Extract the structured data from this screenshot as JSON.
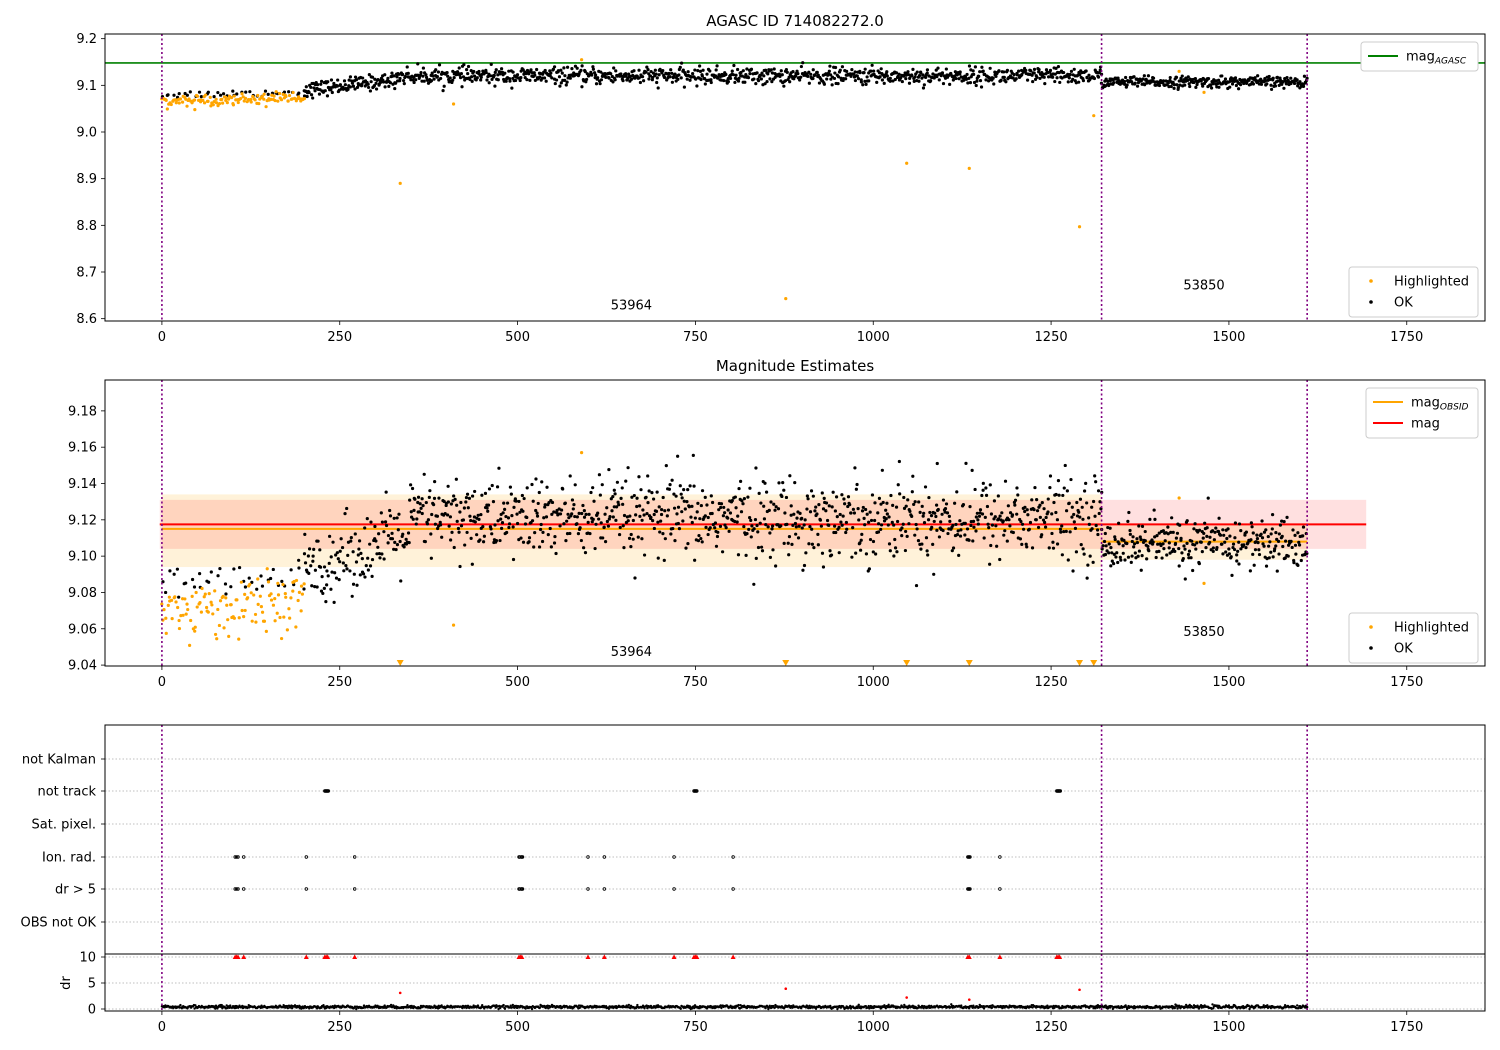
{
  "chart_data": [
    {
      "type": "scatter",
      "title": "AGASC ID 714082272.0",
      "xlim": [
        -80,
        1860
      ],
      "ylim": [
        8.595,
        9.21
      ],
      "xticks": [
        0,
        250,
        500,
        750,
        1000,
        1250,
        1500,
        1750
      ],
      "yticks": [
        "8.6",
        "8.7",
        "8.8",
        "8.9",
        "9.0",
        "9.1",
        "9.2"
      ],
      "obs_boundaries": [
        0,
        1321,
        1610
      ],
      "obs_labels": [
        {
          "text": "53964",
          "x": 660,
          "y": 8.62
        },
        {
          "text": "53850",
          "x": 1465,
          "y": 8.662
        }
      ],
      "hlines": [
        {
          "name": "mag",
          "subscript": "AGASC",
          "y": 9.148,
          "color": "#008000",
          "x0": -80,
          "x1": 1860
        }
      ],
      "series": [
        {
          "name": "Highlighted",
          "color": "#FFA500",
          "segments": [
            {
              "x0": 0,
              "x1": 200,
              "y0": 9.066,
              "y1": 9.074,
              "noise": 0.006,
              "count": 120
            }
          ],
          "points": [
            [
              335,
              8.89
            ],
            [
              410,
              9.06
            ],
            [
              590,
              9.155
            ],
            [
              877,
              8.643
            ],
            [
              1047,
              8.933
            ],
            [
              1135,
              8.922
            ],
            [
              1290,
              8.797
            ],
            [
              1310,
              9.035
            ],
            [
              1465,
              9.085
            ],
            [
              1430,
              9.13
            ]
          ]
        },
        {
          "name": "OK",
          "color": "#000000",
          "segments": [
            {
              "x0": 0,
              "x1": 200,
              "y0": 9.08,
              "y1": 9.085,
              "noise": 0.004,
              "count": 40
            },
            {
              "x0": 200,
              "x1": 330,
              "y0": 9.09,
              "y1": 9.112,
              "noise": 0.008,
              "count": 130
            },
            {
              "x0": 330,
              "x1": 1321,
              "y0": 9.12,
              "y1": 9.12,
              "noise": 0.009,
              "count": 950
            },
            {
              "x0": 1321,
              "x1": 1610,
              "y0": 9.107,
              "y1": 9.107,
              "noise": 0.006,
              "count": 300
            }
          ],
          "points": []
        }
      ],
      "legends": {
        "upper": [
          {
            "kind": "line",
            "color": "#008000",
            "label": "mag",
            "sub": "AGASC"
          }
        ],
        "lower": [
          {
            "kind": "dot",
            "color": "#FFA500",
            "label": "Highlighted"
          },
          {
            "kind": "dot",
            "color": "#000000",
            "label": "OK"
          }
        ]
      }
    },
    {
      "type": "scatter",
      "title": "Magnitude Estimates",
      "xlim": [
        -80,
        1860
      ],
      "ylim": [
        9.0395,
        9.197
      ],
      "xticks": [
        0,
        250,
        500,
        750,
        1000,
        1250,
        1500,
        1750
      ],
      "yticks": [
        "9.04",
        "9.06",
        "9.08",
        "9.10",
        "9.12",
        "9.14",
        "9.16",
        "9.18"
      ],
      "obs_boundaries": [
        0,
        1321,
        1610
      ],
      "obs_labels": [
        {
          "text": "53964",
          "x": 660,
          "y": 9.045
        },
        {
          "text": "53850",
          "x": 1465,
          "y": 9.056
        }
      ],
      "bands": [
        {
          "x0": 0,
          "x1": 1321,
          "y0": 9.094,
          "y1": 9.134,
          "color": "#FFA500",
          "opacity": 0.15
        },
        {
          "x0": 1321,
          "x1": 1610,
          "y0": 9.098,
          "y1": 9.118,
          "color": "#FFA500",
          "opacity": 0.15
        },
        {
          "x0": -3,
          "x1": 1693,
          "y0": 9.104,
          "y1": 9.131,
          "color": "#FF0000",
          "opacity": 0.12
        }
      ],
      "lines": [
        {
          "name": "mag",
          "subscript": "OBSID",
          "color": "#FFA500",
          "x0": 0,
          "x1": 1321,
          "y": 9.115
        },
        {
          "name": "mag",
          "subscript": "OBSID",
          "color": "#FFA500",
          "x0": 1321,
          "x1": 1610,
          "y": 9.108
        },
        {
          "name": "mag",
          "color": "#FF0000",
          "x0": -3,
          "x1": 1693,
          "y": 9.1175
        }
      ],
      "triangles": [
        335,
        877,
        1047,
        1135,
        1290,
        1310
      ],
      "series": [
        {
          "name": "Highlighted",
          "color": "#FFA500",
          "segments": [
            {
              "x0": 0,
              "x1": 200,
              "y0": 9.068,
              "y1": 9.075,
              "noise": 0.008,
              "count": 120
            }
          ],
          "points": [
            [
              410,
              9.062
            ],
            [
              590,
              9.157
            ],
            [
              1465,
              9.085
            ],
            [
              1430,
              9.132
            ]
          ]
        },
        {
          "name": "OK",
          "color": "#000000",
          "segments": [
            {
              "x0": 0,
              "x1": 200,
              "y0": 9.083,
              "y1": 9.088,
              "noise": 0.005,
              "count": 40
            },
            {
              "x0": 200,
              "x1": 350,
              "y0": 9.092,
              "y1": 9.113,
              "noise": 0.01,
              "count": 130
            },
            {
              "x0": 350,
              "x1": 1321,
              "y0": 9.121,
              "y1": 9.121,
              "noise": 0.011,
              "count": 950
            },
            {
              "x0": 1321,
              "x1": 1610,
              "y0": 9.107,
              "y1": 9.107,
              "noise": 0.007,
              "count": 300
            }
          ],
          "points": [
            [
              725,
              9.155
            ],
            [
              1090,
              9.151
            ],
            [
              1085,
              9.09
            ],
            [
              930,
              9.094
            ]
          ]
        }
      ],
      "legends": {
        "upper": [
          {
            "kind": "line",
            "color": "#FFA500",
            "label": "mag",
            "sub": "OBSID"
          },
          {
            "kind": "line",
            "color": "#FF0000",
            "label": "mag",
            "sub": ""
          }
        ],
        "lower": [
          {
            "kind": "dot",
            "color": "#FFA500",
            "label": "Highlighted"
          },
          {
            "kind": "dot",
            "color": "#000000",
            "label": "OK"
          }
        ]
      }
    },
    {
      "type": "scatter",
      "title": "",
      "xlim": [
        -80,
        1860
      ],
      "xticks": [
        0,
        250,
        500,
        750,
        1000,
        1250,
        1500,
        1750
      ],
      "obs_boundaries": [
        0,
        1321,
        1610
      ],
      "flag_rows": [
        "not Kalman",
        "not track",
        "Sat. pixel.",
        "Ion. rad.",
        "dr > 5",
        "OBS not OK"
      ],
      "flags": {
        "not track": [
          229,
          230,
          231,
          232,
          233,
          234,
          748,
          749,
          750,
          751,
          752,
          1258,
          1259,
          1260,
          1261,
          1262,
          1263
        ],
        "Ion. rad.": [
          103,
          105,
          107,
          115,
          203,
          271,
          502,
          503,
          505,
          506,
          507,
          599,
          622,
          720,
          803,
          1133,
          1134,
          1135,
          1136,
          1178
        ],
        "dr > 5": [
          103,
          105,
          107,
          115,
          203,
          271,
          502,
          503,
          505,
          506,
          507,
          599,
          622,
          720,
          803,
          1133,
          1134,
          1135,
          1136,
          1178
        ]
      },
      "dr": {
        "ylabel": "dr",
        "yticks": [
          "0",
          "5",
          "10"
        ],
        "ylim": [
          0,
          10
        ],
        "clipped_markers": [
          103,
          105,
          107,
          115,
          203,
          229,
          231,
          233,
          271,
          502,
          504,
          506,
          599,
          622,
          720,
          748,
          750,
          752,
          803,
          1133,
          1135,
          1178,
          1258,
          1260,
          1262
        ],
        "outliers": [
          [
            335,
            3.1
          ],
          [
            877,
            3.9
          ],
          [
            1047,
            2.2
          ],
          [
            1135,
            1.8
          ],
          [
            1290,
            3.7
          ]
        ],
        "baseline": {
          "x0": 0,
          "x1": 1610,
          "mean": 0.4,
          "noise": 0.25,
          "count": 1610
        }
      }
    }
  ]
}
